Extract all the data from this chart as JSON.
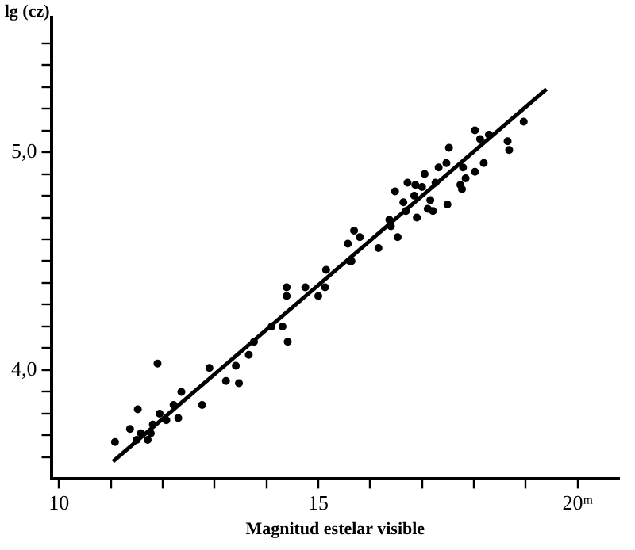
{
  "chart_data": {
    "type": "scatter",
    "xlabel": "Magnitud estelar visible",
    "ylabel": "lg (cz)",
    "xlim": [
      9.85,
      20.8
    ],
    "ylim": [
      3.5,
      5.62
    ],
    "xticks": [
      10,
      {
        "value": 11,
        "label": null
      },
      {
        "value": 12,
        "label": null
      },
      {
        "value": 13,
        "label": null
      },
      {
        "value": 14,
        "label": null
      },
      15,
      {
        "value": 16,
        "label": null
      },
      {
        "value": 17,
        "label": null
      },
      {
        "value": 18,
        "label": null
      },
      {
        "value": 19,
        "label": null
      },
      {
        "value": 20,
        "label": "20ᵐ"
      }
    ],
    "yticks": [
      {
        "value": 3.6,
        "label": null
      },
      {
        "value": 3.7,
        "label": null
      },
      {
        "value": 3.8,
        "label": null
      },
      {
        "value": 3.9,
        "label": null
      },
      {
        "value": 4,
        "label": "4,0"
      },
      {
        "value": 4.1,
        "label": null
      },
      {
        "value": 4.2,
        "label": null
      },
      {
        "value": 4.3,
        "label": null
      },
      {
        "value": 4.4,
        "label": null
      },
      {
        "value": 4.5,
        "label": null
      },
      {
        "value": 4.6,
        "label": null
      },
      {
        "value": 4.7,
        "label": null
      },
      {
        "value": 4.8,
        "label": null
      },
      {
        "value": 4.9,
        "label": null
      },
      {
        "value": 5,
        "label": "5,0"
      },
      {
        "value": 5.1,
        "label": null
      },
      {
        "value": 5.2,
        "label": null
      },
      {
        "value": 5.3,
        "label": null
      },
      {
        "value": 5.4,
        "label": null
      },
      {
        "value": 5.5,
        "label": null
      }
    ],
    "grid": false,
    "legend": false,
    "series": [
      {
        "color": "#000000",
        "marker": "circle",
        "x": [
          11.08,
          11.37,
          11.52,
          11.5,
          11.58,
          11.71,
          11.77,
          11.81,
          11.9,
          11.94,
          12.07,
          12.21,
          12.3,
          12.36,
          12.76,
          12.9,
          13.22,
          13.41,
          13.47,
          13.66,
          13.76,
          14.1,
          14.31,
          14.41,
          14.39,
          14.39,
          14.75,
          15.0,
          15.13,
          15.15,
          15.61,
          15.64,
          15.57,
          15.69,
          15.8,
          16.16,
          16.37,
          16.4,
          16.53,
          16.48,
          16.64,
          16.72,
          16.87,
          16.9,
          17.0,
          17.05,
          17.11,
          17.16,
          17.21,
          17.26,
          17.32,
          17.47,
          17.52,
          17.49,
          17.74,
          17.77,
          17.84,
          17.79,
          18.02,
          18.19,
          18.02,
          18.12,
          18.29,
          18.65,
          18.68,
          18.96,
          16.69,
          16.85
        ],
        "values": [
          3.67,
          3.73,
          3.82,
          3.68,
          3.71,
          3.68,
          3.71,
          3.75,
          4.03,
          3.8,
          3.77,
          3.84,
          3.78,
          3.9,
          3.84,
          4.01,
          3.95,
          4.02,
          3.94,
          4.07,
          4.13,
          4.2,
          4.2,
          4.13,
          4.38,
          4.34,
          4.38,
          4.34,
          4.38,
          4.46,
          4.5,
          4.5,
          4.58,
          4.64,
          4.61,
          4.56,
          4.69,
          4.66,
          4.61,
          4.82,
          4.77,
          4.86,
          4.85,
          4.7,
          4.84,
          4.9,
          4.74,
          4.78,
          4.73,
          4.86,
          4.93,
          4.95,
          5.02,
          4.76,
          4.85,
          4.83,
          4.88,
          4.93,
          4.91,
          4.95,
          5.1,
          5.06,
          5.08,
          5.05,
          5.01,
          5.14,
          4.73,
          4.8
        ]
      },
      {
        "type": "line",
        "color": "#000000",
        "x": [
          11.04,
          19.4
        ],
        "values": [
          3.58,
          5.29
        ]
      }
    ]
  }
}
